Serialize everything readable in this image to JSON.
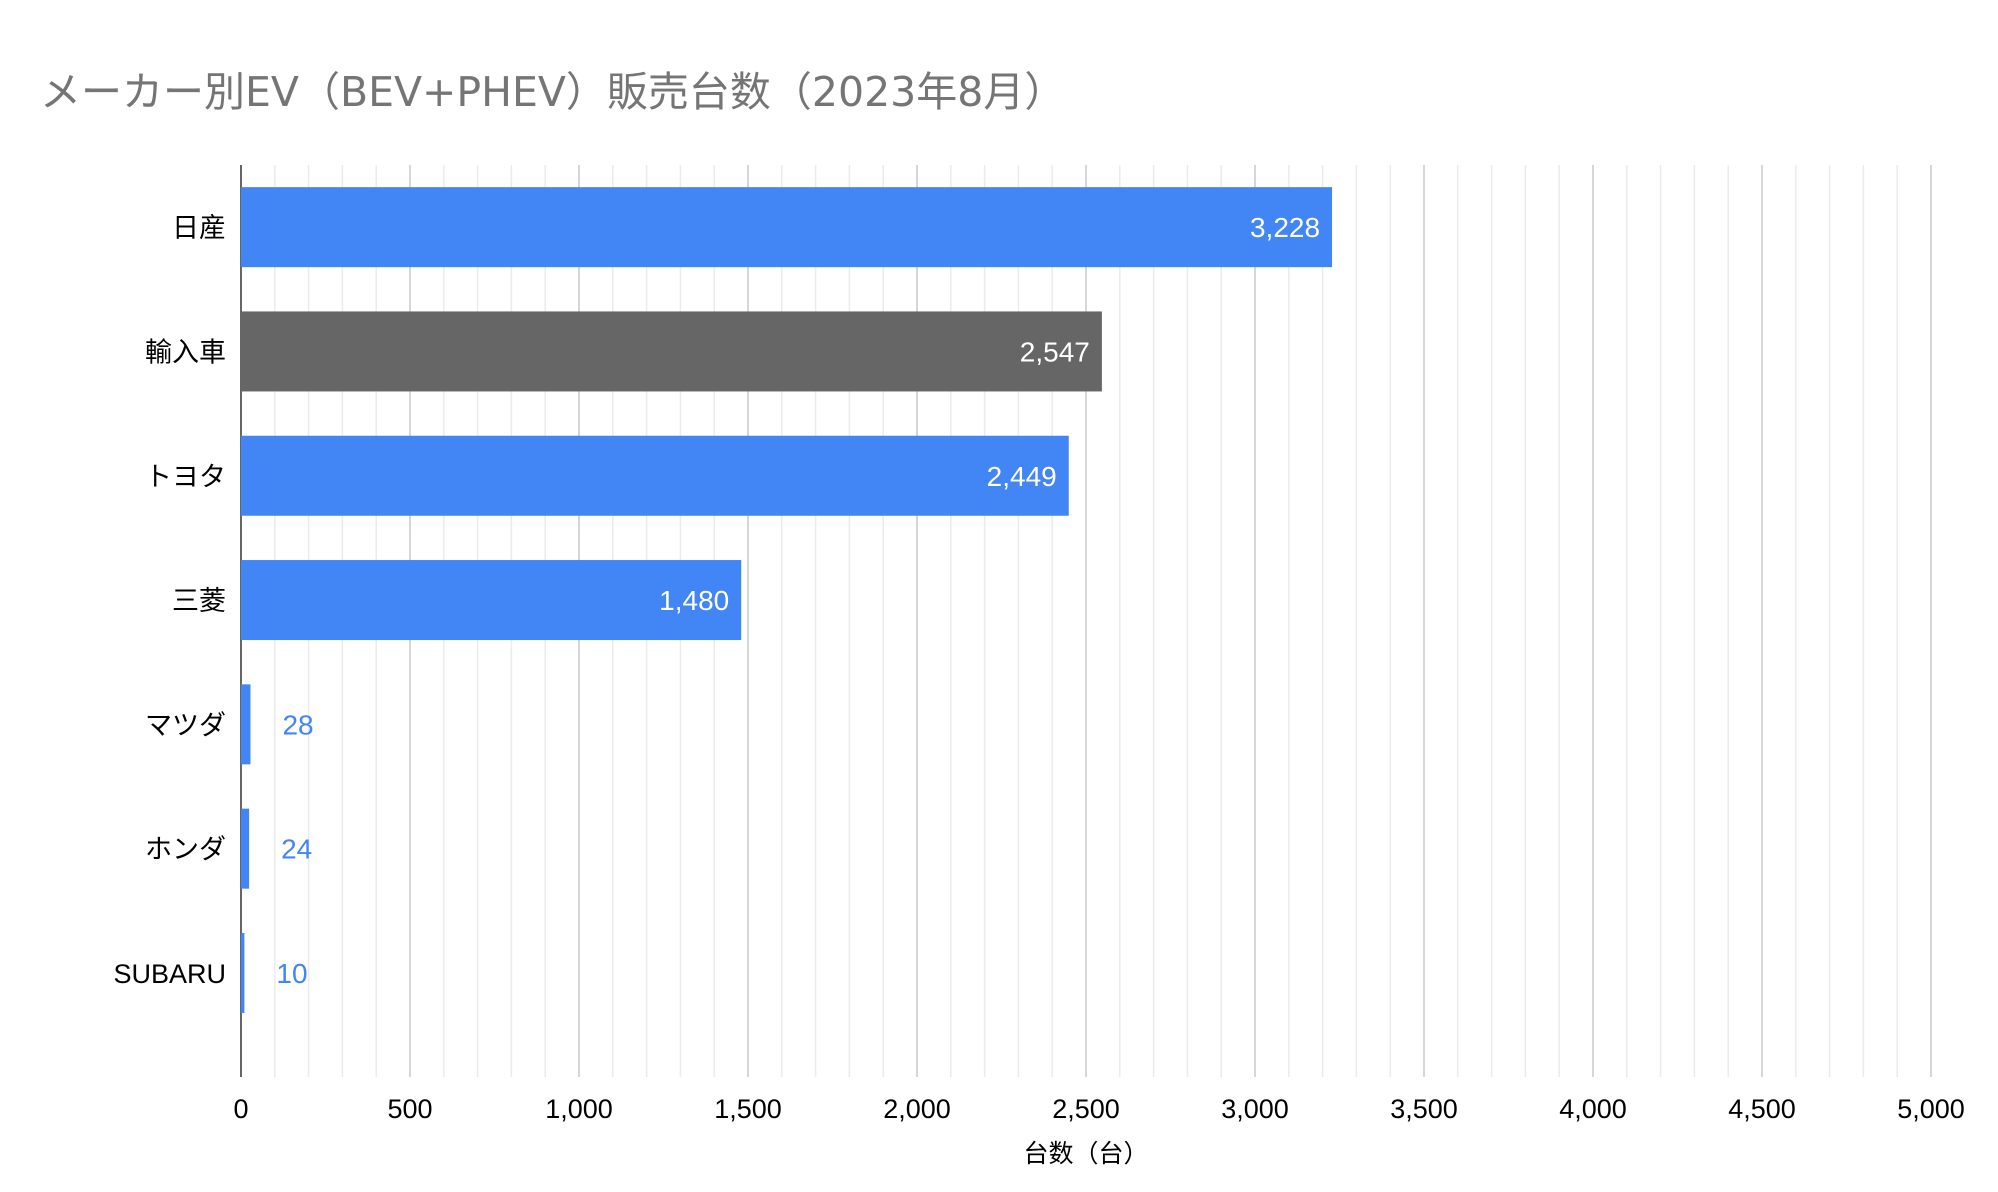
{
  "chart_data": {
    "type": "bar",
    "orientation": "horizontal",
    "title": "メーカー別EV（BEV+PHEV）販売台数（2023年8月）",
    "xlabel": "台数（台）",
    "ylabel": "",
    "xlim": [
      0,
      5000
    ],
    "x_ticks": [
      0,
      500,
      1000,
      1500,
      2000,
      2500,
      3000,
      3500,
      4000,
      4500,
      5000
    ],
    "x_tick_labels": [
      "0",
      "500",
      "1,000",
      "1,500",
      "2,000",
      "2,500",
      "3,000",
      "3,500",
      "4,000",
      "4,500",
      "5,000"
    ],
    "minor_grid_step": 100,
    "grid": true,
    "categories": [
      "日産",
      "輸入車",
      "トヨタ",
      "三菱",
      "マツダ",
      "ホンダ",
      "SUBARU"
    ],
    "values": [
      3228,
      2547,
      2449,
      1480,
      28,
      24,
      10
    ],
    "data_labels": [
      "3,228",
      "2,547",
      "2,449",
      "1,480",
      "28",
      "24",
      "10"
    ],
    "bar_colors": [
      "#4285f4",
      "#666666",
      "#4285f4",
      "#4285f4",
      "#4285f4",
      "#4285f4",
      "#4285f4"
    ]
  },
  "colors": {
    "title": "#757575",
    "axis_text": "#000000",
    "major_grid": "#c8c8c8",
    "minor_grid": "#ebebeb",
    "axis_line": "#333333",
    "label_inside": "#ffffff",
    "label_outside": "#4285f4"
  }
}
